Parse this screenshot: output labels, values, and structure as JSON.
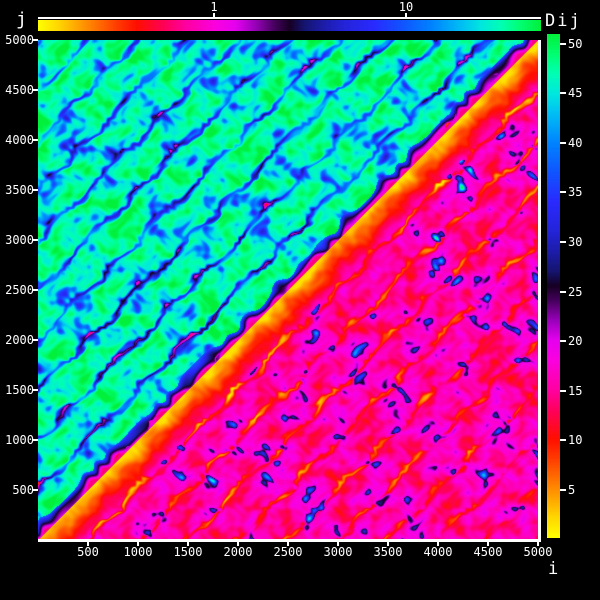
{
  "figure": {
    "background": "#000000",
    "border_color": "#ffffff"
  },
  "chart_data": {
    "type": "heatmap",
    "title": "",
    "xlabel": "i",
    "ylabel": "j",
    "colorbar_label": "Dij",
    "x_range": [
      0,
      5000
    ],
    "y_range": [
      0,
      5000
    ],
    "x_ticks": [
      500,
      1000,
      1500,
      2000,
      2500,
      3000,
      3500,
      4000,
      4500,
      5000
    ],
    "y_ticks": [
      500,
      1000,
      1500,
      2000,
      2500,
      3000,
      3500,
      4000,
      4500,
      5000
    ],
    "colorbar": {
      "side": "right",
      "scale": "linear",
      "range": [
        0.12,
        51
      ],
      "ticks": [
        5,
        10,
        15,
        20,
        25,
        30,
        35,
        40,
        45,
        50
      ]
    },
    "top_colorbar": {
      "side": "top",
      "scale": "log",
      "range": [
        0.12,
        51
      ],
      "ticks": [
        1,
        10
      ]
    },
    "palette_stops": [
      [
        0,
        "#ffff00"
      ],
      [
        2,
        "#ffd800"
      ],
      [
        5,
        "#ff8a00"
      ],
      [
        8,
        "#ff3c00"
      ],
      [
        10,
        "#ff0f00"
      ],
      [
        13,
        "#ff0060"
      ],
      [
        15,
        "#ff00a2"
      ],
      [
        18,
        "#fb00e0"
      ],
      [
        20,
        "#e600f0"
      ],
      [
        22,
        "#9900bb"
      ],
      [
        24,
        "#46005e"
      ],
      [
        25.5,
        "#170022"
      ],
      [
        27,
        "#151570"
      ],
      [
        29,
        "#1d1daa"
      ],
      [
        31,
        "#2424d8"
      ],
      [
        34,
        "#2a2aff"
      ],
      [
        37,
        "#1155ff"
      ],
      [
        40,
        "#0084ff"
      ],
      [
        43,
        "#00c0f4"
      ],
      [
        45,
        "#00e8e0"
      ],
      [
        47,
        "#00ffb4"
      ],
      [
        49,
        "#00ff70"
      ],
      [
        51,
        "#00f03c"
      ]
    ],
    "structure": "Asymmetric matrix Dij over i,j in [0,5000]. Upper triangle (j>i): high values ~28-51 (green/cyan field with blue blobs and thin magenta low-value streaks parallel to the diagonal every ~500). Lower triangle (j<i): low values ~1-25 (magenta field with yellow/orange low-value streaks along the diagonal and its 500-periodic repeats, plus dark-navy blobs with cyan high-value cores). Sharp discontinuity along the main diagonal.",
    "pattern": {
      "period": 500,
      "upper": {
        "base": 47,
        "amp": 5.5,
        "deep_amp": 16,
        "streak_depth": 30,
        "edge_min": 14,
        "edge_slope": 0.16,
        "edge_width": 150
      },
      "lower": {
        "base": 16,
        "amp": 5.5,
        "streak_depth": 14,
        "blob_threshold": 0.55,
        "blob_gain": 52,
        "flame_min": 1.5,
        "flame_slope": 0.03,
        "flame_width": 520
      },
      "value_range": [
        0.2,
        51.3
      ]
    }
  }
}
